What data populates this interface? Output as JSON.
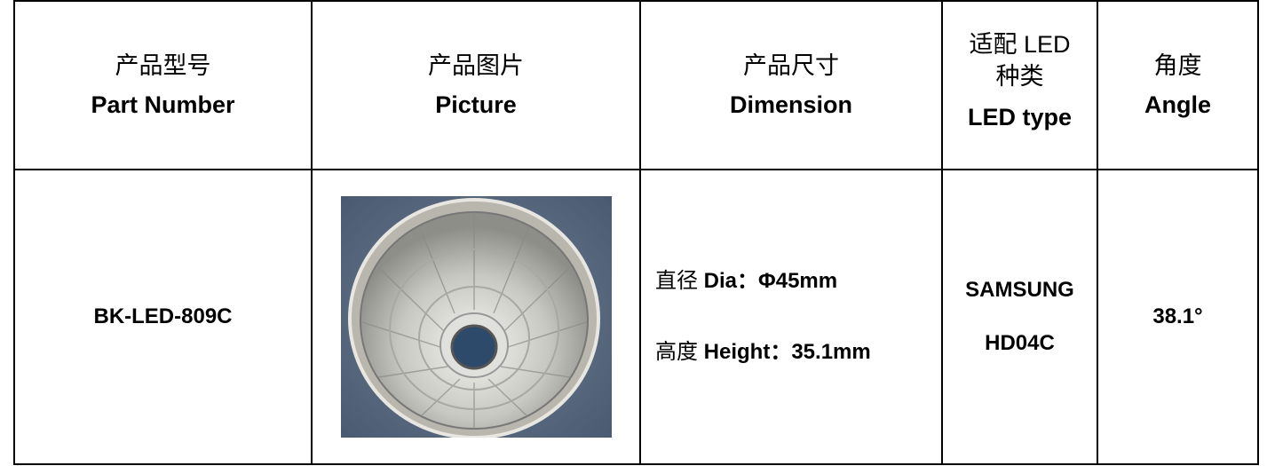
{
  "table": {
    "header": [
      {
        "lines": [
          "产品型号",
          "Part Number"
        ]
      },
      {
        "lines": [
          "产品图片",
          "Picture"
        ]
      },
      {
        "lines": [
          "产品尺寸",
          "Dimension"
        ]
      },
      {
        "lines": [
          "适配 LED",
          "种类",
          "LED type"
        ]
      },
      {
        "lines": [
          "角度",
          "Angle"
        ]
      }
    ],
    "row": {
      "part_number": "BK-LED-809C",
      "dimension": [
        {
          "cn": "直径",
          "en": "Dia：Φ45mm"
        },
        {
          "cn": "高度",
          "en": "Height：35.1mm"
        }
      ],
      "led_type": [
        "SAMSUNG",
        "HD04C"
      ],
      "angle": "38.1°"
    }
  }
}
